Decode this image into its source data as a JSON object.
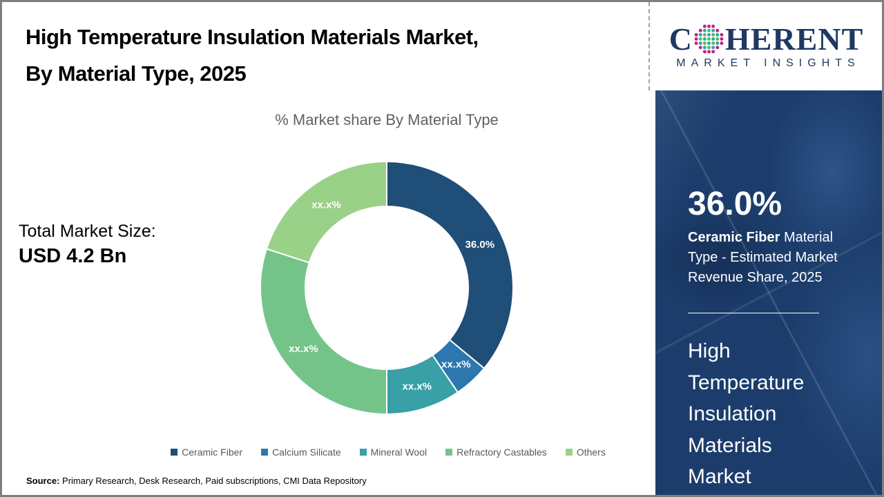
{
  "page": {
    "title_line1": "High Temperature Insulation Materials Market,",
    "title_line2": "By Material Type, 2025"
  },
  "brand": {
    "name_part1": "C",
    "name_part2": "HERENT",
    "tagline": "MARKET INSIGHTS",
    "navy": "#1F3864",
    "globe_colors": {
      "outer": "#C0218C",
      "teal": "#2AA9A0",
      "green": "#5CB85C"
    }
  },
  "left": {
    "total_label": "Total Market Size:",
    "total_value": "USD 4.2 Bn"
  },
  "chart_data": {
    "type": "donut",
    "title": "% Market share By Material Type",
    "start_angle_deg": 0,
    "direction": "clockwise",
    "legend_position": "bottom",
    "slices": [
      {
        "name": "Ceramic Fiber",
        "value": 36.0,
        "display": "36.0%",
        "color": "#1F4E79"
      },
      {
        "name": "Calcium Silicate",
        "value": 4.5,
        "display": "xx.x%",
        "color": "#2B77AE"
      },
      {
        "name": "Mineral Wool",
        "value": 9.5,
        "display": "xx.x%",
        "color": "#38A0A6"
      },
      {
        "name": "Refractory Castables",
        "value": 30.0,
        "display": "xx.x%",
        "color": "#74C48A"
      },
      {
        "name": "Others",
        "value": 20.0,
        "display": "xx.x%",
        "color": "#9AD188"
      }
    ]
  },
  "panel": {
    "stat_value": "36.0%",
    "stat_bold": "Ceramic Fiber",
    "stat_rest": " Material Type - Estimated Market Revenue Share, 2025",
    "market_name": "High\nTemperature\nInsulation\nMaterials\nMarket"
  },
  "footer": {
    "source_label": "Source:",
    "source_text": " Primary Research, Desk Research, Paid subscriptions, CMI Data Repository"
  }
}
